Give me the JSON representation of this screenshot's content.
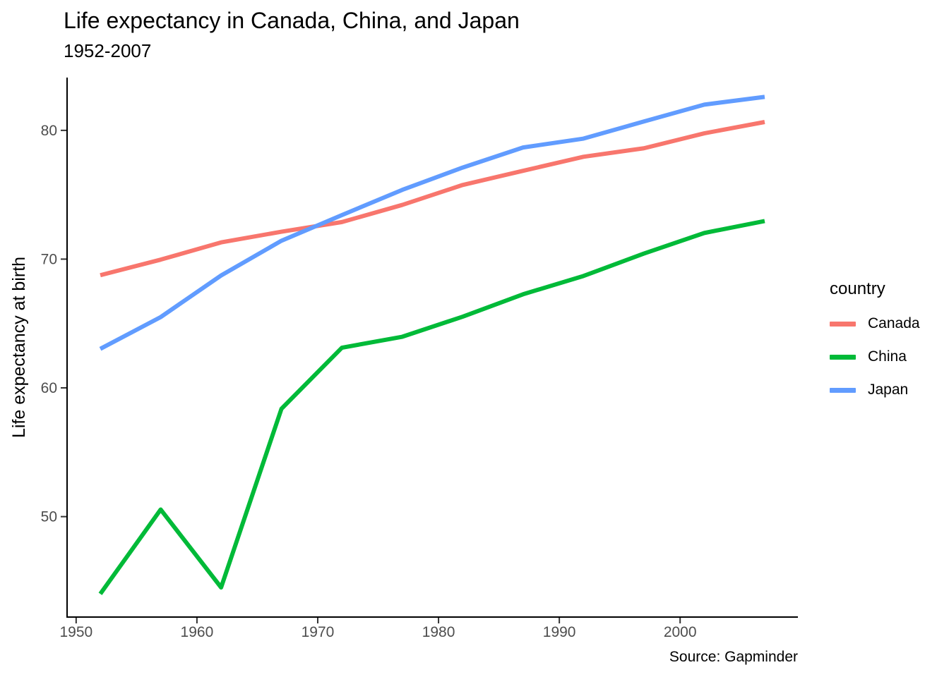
{
  "figure": {
    "title": "Life expectancy in Canada, China, and Japan",
    "subtitle": "1952-2007",
    "caption": "Source: Gapminder",
    "y_axis_title": "Life expectancy at birth",
    "legend_title": "country"
  },
  "chart_data": {
    "type": "line",
    "title": "Life expectancy in Canada, China, and Japan",
    "subtitle": "1952-2007",
    "caption": "Source: Gapminder",
    "xlabel": "",
    "ylabel": "Life expectancy at birth",
    "legend_title": "country",
    "legend_position": "right",
    "grid": false,
    "background": "#ffffff",
    "axis_line_color": "#000000",
    "tick_color": "#333333",
    "axis_text_color": "#4d4d4d",
    "x": [
      1952,
      1957,
      1962,
      1967,
      1972,
      1977,
      1982,
      1987,
      1992,
      1997,
      2002,
      2007
    ],
    "x_ticks": [
      1950,
      1960,
      1970,
      1980,
      1990,
      2000
    ],
    "y_ticks": [
      50,
      60,
      70,
      80
    ],
    "xlim": [
      1949.25,
      2009.75
    ],
    "ylim": [
      42.2,
      84.1
    ],
    "series": [
      {
        "name": "Canada",
        "color": "#F8766D",
        "values": [
          68.75,
          69.96,
          71.3,
          72.13,
          72.88,
          74.21,
          75.76,
          76.86,
          77.95,
          78.61,
          79.77,
          80.65
        ]
      },
      {
        "name": "China",
        "color": "#00BA38",
        "values": [
          44.0,
          50.55,
          44.5,
          58.38,
          63.12,
          63.97,
          65.53,
          67.27,
          68.69,
          70.43,
          72.03,
          72.96
        ]
      },
      {
        "name": "Japan",
        "color": "#619CFF",
        "values": [
          63.03,
          65.5,
          68.73,
          71.43,
          73.42,
          75.38,
          77.11,
          78.67,
          79.36,
          80.69,
          82.0,
          82.6
        ]
      }
    ]
  }
}
